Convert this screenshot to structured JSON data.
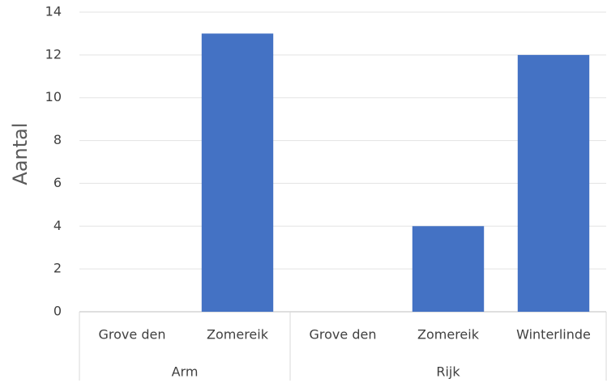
{
  "chart_data": {
    "type": "bar",
    "y_label": "Aantal",
    "groups": [
      {
        "name": "Arm",
        "categories": [
          "Grove den",
          "Zomereik"
        ],
        "values": [
          0,
          13
        ]
      },
      {
        "name": "Rijk",
        "categories": [
          "Grove den",
          "Zomereik",
          "Winterlinde"
        ],
        "values": [
          0,
          4,
          12
        ]
      }
    ],
    "color": "#4472c4",
    "ylim": [
      0,
      14
    ],
    "yticks": [
      0,
      2,
      4,
      6,
      8,
      10,
      12,
      14
    ],
    "grid": true
  }
}
